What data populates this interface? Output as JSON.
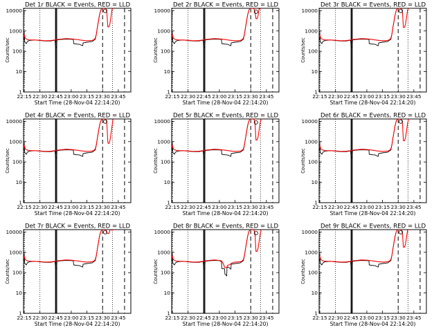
{
  "chart_data": [
    {
      "type": "line",
      "title": "Det 1r BLACK = Events, RED = LLD",
      "dip": 1,
      "peak": [
        0,
        0,
        1,
        0
      ],
      "red_dip": 1600
    },
    {
      "type": "line",
      "title": "Det 2r BLACK = Events, RED = LLD",
      "dip": 1,
      "peak": [
        0,
        0,
        0,
        1
      ],
      "red_dip": 4000
    },
    {
      "type": "line",
      "title": "Det 3r BLACK = Events, RED = LLD",
      "dip": 1,
      "peak": [
        0,
        0,
        1,
        0
      ],
      "red_dip": 1500
    },
    {
      "type": "line",
      "title": "Det 4r BLACK = Events, RED = LLD",
      "dip": 1,
      "peak": [
        0,
        0,
        1,
        0
      ],
      "red_dip": 800
    },
    {
      "type": "line",
      "title": "Det 5r BLACK = Events, RED = LLD",
      "dip": 1,
      "peak": [
        0,
        0,
        0,
        1
      ],
      "red_dip": 1200
    },
    {
      "type": "line",
      "title": "Det 6r BLACK = Events, RED = LLD",
      "dip": 1,
      "peak": [
        0,
        0,
        1,
        0
      ],
      "red_dip": 1100
    },
    {
      "type": "line",
      "title": "Det 7r BLACK = Events, RED = LLD",
      "dip": 1,
      "peak": [
        0,
        0,
        1,
        0
      ],
      "red_dip": 8500
    },
    {
      "type": "line",
      "title": "Det 8r BLACK = Events, RED = LLD",
      "dip": 2,
      "peak": [
        0,
        0,
        0,
        1
      ],
      "red_dip": 1100
    },
    {
      "type": "line",
      "title": "Det 9r BLACK = Events, RED = LLD",
      "dip": 1,
      "peak": [
        0,
        0,
        1,
        0
      ],
      "red_dip": 1800
    }
  ],
  "axes": {
    "xlabel": "Start Time (28-Nov-04 22:14:20)",
    "ylabel": "Counts/sec",
    "x_ticks": [
      "22:15",
      "22:30",
      "22:45",
      "23:00",
      "23:15",
      "23:30",
      "23:45"
    ],
    "x_tick_minutes": [
      15,
      30,
      45,
      60,
      75,
      90,
      105
    ],
    "xlim_minutes": [
      14.33,
      117
    ],
    "y_ticks": [
      "1",
      "10",
      "100",
      "1000",
      "10000"
    ],
    "y_tick_values": [
      1,
      10,
      100,
      1000,
      10000
    ],
    "ylim": [
      1,
      13000
    ],
    "y_scale": "log",
    "dotted_lines_minutes": [
      15,
      30,
      99.5
    ],
    "solid_lines_minutes": [
      45,
      46
    ],
    "dashed_lines_minutes": [
      90,
      111
    ],
    "series": [
      {
        "name": "Events",
        "color": "#000000"
      },
      {
        "name": "LLD",
        "color": "#ff0000"
      }
    ]
  }
}
